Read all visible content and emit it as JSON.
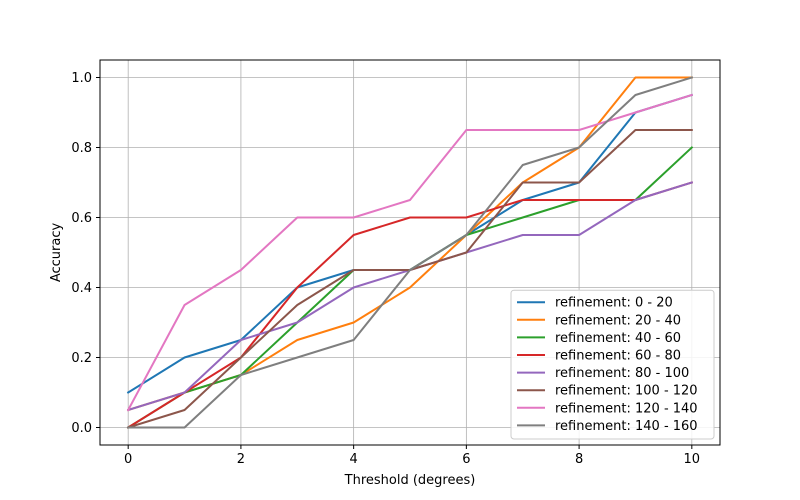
{
  "chart_data": {
    "type": "line",
    "title": "",
    "xlabel": "Threshold (degrees)",
    "ylabel": "Accuracy",
    "xlim": [
      -0.5,
      10.5
    ],
    "ylim": [
      -0.05,
      1.05
    ],
    "xticks": [
      0,
      2,
      4,
      6,
      8,
      10
    ],
    "xtick_labels": [
      "0",
      "2",
      "4",
      "6",
      "8",
      "10"
    ],
    "yticks": [
      0.0,
      0.2,
      0.4,
      0.6,
      0.8,
      1.0
    ],
    "ytick_labels": [
      "0.0",
      "0.2",
      "0.4",
      "0.6",
      "0.8",
      "1.0"
    ],
    "grid": true,
    "legend_position": "lower-right",
    "x": [
      0,
      1,
      2,
      3,
      4,
      5,
      6,
      7,
      8,
      9,
      10
    ],
    "series": [
      {
        "name": "refinement: 0 - 20",
        "color": "#1f77b4",
        "values": [
          0.1,
          0.2,
          0.25,
          0.4,
          0.45,
          0.45,
          0.55,
          0.65,
          0.7,
          0.9,
          0.95
        ]
      },
      {
        "name": "refinement: 20 - 40",
        "color": "#ff7f0e",
        "values": [
          0.05,
          0.1,
          0.15,
          0.25,
          0.3,
          0.4,
          0.55,
          0.7,
          0.8,
          1.0,
          1.0
        ]
      },
      {
        "name": "refinement: 40 - 60",
        "color": "#2ca02c",
        "values": [
          0.0,
          0.1,
          0.15,
          0.3,
          0.45,
          0.45,
          0.55,
          0.6,
          0.65,
          0.65,
          0.8
        ]
      },
      {
        "name": "refinement: 60 - 80",
        "color": "#d62728",
        "values": [
          0.0,
          0.1,
          0.2,
          0.4,
          0.55,
          0.6,
          0.6,
          0.65,
          0.65,
          0.65,
          0.7
        ]
      },
      {
        "name": "refinement: 80 - 100",
        "color": "#9467bd",
        "values": [
          0.05,
          0.1,
          0.25,
          0.3,
          0.4,
          0.45,
          0.5,
          0.55,
          0.55,
          0.65,
          0.7
        ]
      },
      {
        "name": "refinement: 100 - 120",
        "color": "#8c564b",
        "values": [
          0.0,
          0.05,
          0.2,
          0.35,
          0.45,
          0.45,
          0.5,
          0.7,
          0.7,
          0.85,
          0.85
        ]
      },
      {
        "name": "refinement: 120 - 140",
        "color": "#e377c2",
        "values": [
          0.05,
          0.35,
          0.45,
          0.6,
          0.6,
          0.65,
          0.85,
          0.85,
          0.85,
          0.9,
          0.95
        ]
      },
      {
        "name": "refinement: 140 - 160",
        "color": "#7f7f7f",
        "values": [
          0.0,
          0.0,
          0.15,
          0.2,
          0.25,
          0.45,
          0.55,
          0.75,
          0.8,
          0.95,
          1.0
        ]
      }
    ]
  }
}
